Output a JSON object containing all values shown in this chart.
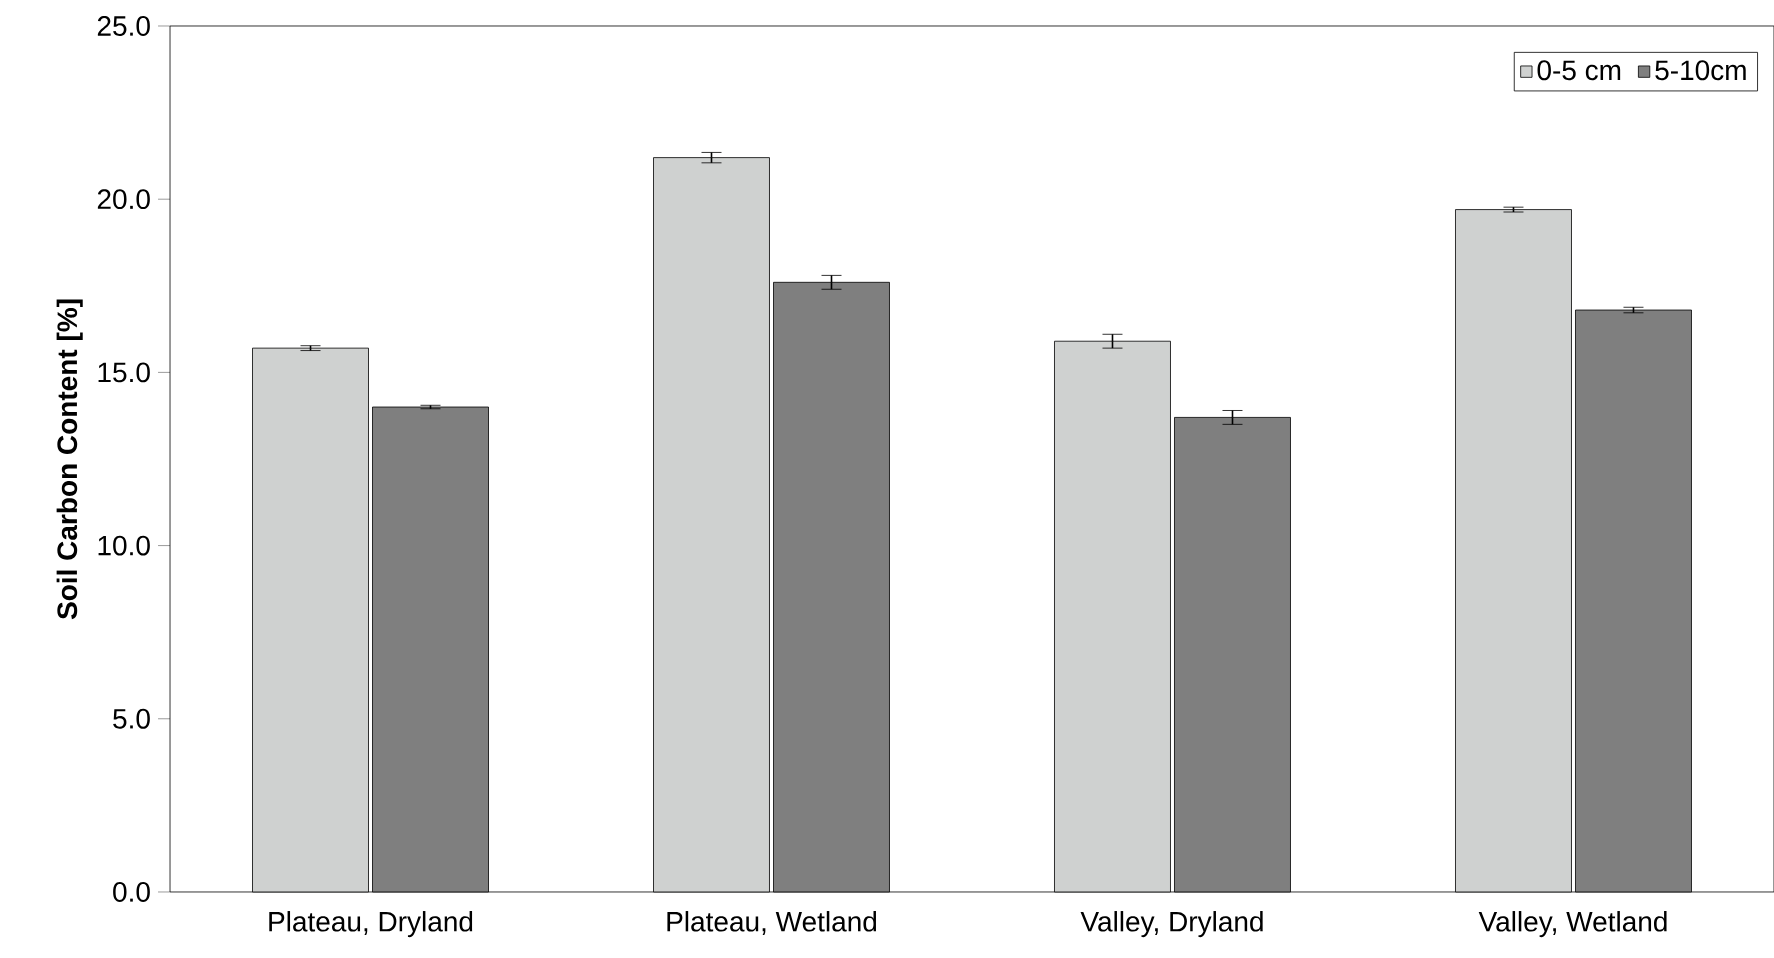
{
  "chart_data": {
    "type": "bar",
    "ylabel": "Soil Carbon Content [%]",
    "categories": [
      "Plateau, Dryland",
      "Plateau, Wetland",
      "Valley, Dryland",
      "Valley, Wetland"
    ],
    "series": [
      {
        "name": "0-5 cm",
        "color": "#cfd1d0",
        "values": [
          15.7,
          21.2,
          15.9,
          19.7
        ],
        "errors": [
          0.07,
          0.15,
          0.2,
          0.07
        ]
      },
      {
        "name": "5-10cm",
        "color": "#7f7f7f",
        "values": [
          14.0,
          17.6,
          13.7,
          16.8
        ],
        "errors": [
          0.05,
          0.2,
          0.2,
          0.08
        ]
      }
    ],
    "ylim": [
      0,
      25
    ],
    "yticks": [
      {
        "value": 0,
        "label": "0.0"
      },
      {
        "value": 5,
        "label": "5.0"
      },
      {
        "value": 10,
        "label": "10.0"
      },
      {
        "value": 15,
        "label": "15.0"
      },
      {
        "value": 20,
        "label": "20.0"
      },
      {
        "value": 25,
        "label": "25.0"
      }
    ],
    "legend": "top right",
    "grid": false
  }
}
